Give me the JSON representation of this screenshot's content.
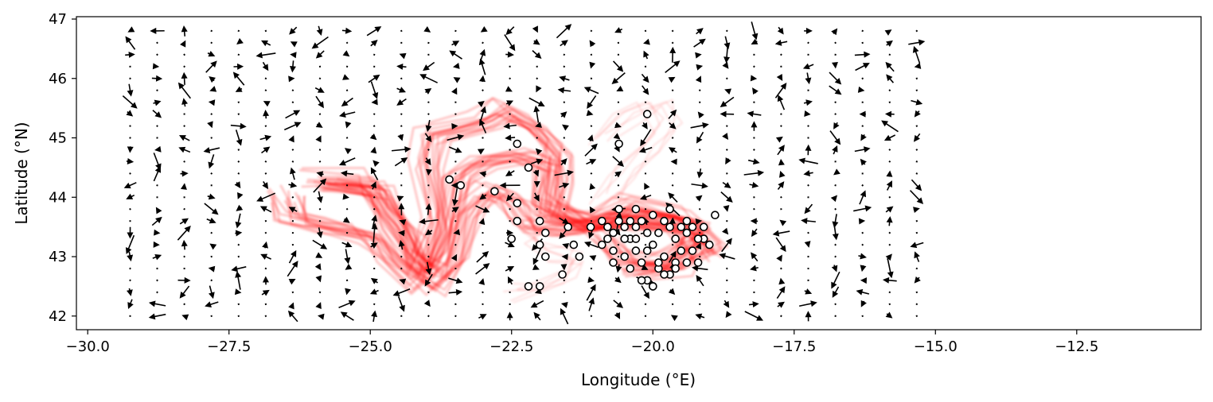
{
  "chart_data": {
    "type": "scatter",
    "title": "",
    "xlabel": "Longitude (°E)",
    "ylabel": "Latitude (°N)",
    "xlim": [
      -30.2,
      -10.3
    ],
    "ylim": [
      41.77,
      47.04
    ],
    "xticks": [
      -30.0,
      -27.5,
      -25.0,
      -22.5,
      -20.0,
      -17.5,
      -15.0,
      -12.5
    ],
    "xtick_labels": [
      "−30.0",
      "−27.5",
      "−25.0",
      "−22.5",
      "−20.0",
      "−17.5",
      "−15.0",
      "−12.5"
    ],
    "yticks": [
      42,
      43,
      44,
      45,
      46,
      47
    ],
    "ytick_labels": [
      "42",
      "43",
      "44",
      "45",
      "46",
      "47"
    ],
    "grid": false,
    "legend": "none",
    "colors": {
      "trajectories": "#ff0000",
      "arrows": "#000000",
      "points_fill": "#ffffff",
      "points_edge": "#000000"
    },
    "series": [
      {
        "kind": "trajectory-density",
        "paths": [
          [
            [
              -26.0,
              44.3
            ],
            [
              -25.0,
              44.3
            ],
            [
              -24.8,
              44.0
            ],
            [
              -24.3,
              43.4
            ],
            [
              -24.1,
              42.8
            ],
            [
              -23.8,
              43.6
            ],
            [
              -24.0,
              44.6
            ],
            [
              -23.9,
              45.1
            ],
            [
              -23.0,
              45.3
            ],
            [
              -22.6,
              45.5
            ],
            [
              -22.1,
              45.2
            ],
            [
              -21.7,
              44.8
            ],
            [
              -21.7,
              44.3
            ],
            [
              -21.8,
              43.8
            ],
            [
              -21.0,
              43.6
            ],
            [
              -20.4,
              43.9
            ],
            [
              -19.4,
              43.7
            ],
            [
              -19.0,
              43.3
            ],
            [
              -19.8,
              42.9
            ],
            [
              -20.6,
              43.0
            ],
            [
              -20.9,
              43.4
            ]
          ],
          [
            [
              -25.7,
              44.2
            ],
            [
              -24.9,
              44.1
            ],
            [
              -24.6,
              43.6
            ],
            [
              -24.3,
              43.0
            ],
            [
              -23.9,
              42.7
            ],
            [
              -23.6,
              43.5
            ],
            [
              -23.5,
              44.3
            ],
            [
              -23.0,
              44.6
            ],
            [
              -22.3,
              44.7
            ],
            [
              -21.8,
              44.5
            ],
            [
              -21.9,
              43.9
            ],
            [
              -21.2,
              43.5
            ],
            [
              -20.6,
              43.7
            ],
            [
              -19.9,
              43.6
            ],
            [
              -19.2,
              43.4
            ],
            [
              -19.6,
              42.8
            ],
            [
              -20.3,
              42.7
            ]
          ],
          [
            [
              -26.5,
              44.1
            ],
            [
              -26.4,
              43.7
            ],
            [
              -25.6,
              43.5
            ],
            [
              -25.0,
              43.4
            ],
            [
              -24.7,
              43.1
            ],
            [
              -24.0,
              42.5
            ],
            [
              -23.5,
              43.0
            ],
            [
              -23.3,
              43.8
            ],
            [
              -22.9,
              44.2
            ],
            [
              -22.5,
              44.0
            ],
            [
              -22.2,
              43.6
            ],
            [
              -21.5,
              43.5
            ],
            [
              -20.6,
              43.6
            ],
            [
              -19.6,
              43.6
            ],
            [
              -19.1,
              43.1
            ]
          ],
          [
            [
              -22.5,
              42.4
            ],
            [
              -22.0,
              42.5
            ],
            [
              -21.5,
              42.7
            ],
            [
              -21.3,
              43.0
            ],
            [
              -21.9,
              43.1
            ],
            [
              -22.3,
              43.4
            ],
            [
              -21.9,
              43.6
            ],
            [
              -21.0,
              43.7
            ],
            [
              -20.2,
              43.5
            ]
          ],
          [
            [
              -21.0,
              45.0
            ],
            [
              -20.5,
              45.4
            ],
            [
              -20.0,
              45.6
            ],
            [
              -19.8,
              45.2
            ],
            [
              -20.1,
              44.8
            ],
            [
              -20.6,
              44.4
            ],
            [
              -20.9,
              44.0
            ]
          ]
        ]
      },
      {
        "kind": "points",
        "points": [
          [
            -20.1,
            45.4
          ],
          [
            -20.6,
            44.9
          ],
          [
            -22.4,
            44.9
          ],
          [
            -22.2,
            44.5
          ],
          [
            -23.6,
            44.3
          ],
          [
            -23.4,
            44.2
          ],
          [
            -22.8,
            44.1
          ],
          [
            -22.4,
            43.9
          ],
          [
            -22.4,
            43.6
          ],
          [
            -22.0,
            43.6
          ],
          [
            -21.9,
            43.4
          ],
          [
            -22.5,
            43.3
          ],
          [
            -22.0,
            43.2
          ],
          [
            -21.9,
            43.0
          ],
          [
            -21.5,
            43.5
          ],
          [
            -21.4,
            43.2
          ],
          [
            -21.3,
            43.0
          ],
          [
            -21.6,
            42.7
          ],
          [
            -22.0,
            42.5
          ],
          [
            -22.2,
            42.5
          ],
          [
            -21.1,
            43.5
          ],
          [
            -20.9,
            43.6
          ],
          [
            -20.8,
            43.3
          ],
          [
            -20.7,
            43.1
          ],
          [
            -20.6,
            43.6
          ],
          [
            -20.5,
            43.5
          ],
          [
            -20.4,
            43.3
          ],
          [
            -20.3,
            43.5
          ],
          [
            -20.2,
            43.6
          ],
          [
            -20.1,
            43.4
          ],
          [
            -20.0,
            43.2
          ],
          [
            -19.9,
            43.4
          ],
          [
            -19.8,
            43.6
          ],
          [
            -19.7,
            43.5
          ],
          [
            -19.6,
            43.3
          ],
          [
            -19.5,
            43.5
          ],
          [
            -19.4,
            43.4
          ],
          [
            -19.3,
            43.5
          ],
          [
            -19.1,
            43.5
          ],
          [
            -18.9,
            43.7
          ],
          [
            -20.9,
            43.2
          ],
          [
            -20.7,
            42.9
          ],
          [
            -20.5,
            43.0
          ],
          [
            -20.4,
            42.8
          ],
          [
            -20.3,
            43.1
          ],
          [
            -20.2,
            42.9
          ],
          [
            -20.1,
            42.6
          ],
          [
            -20.0,
            42.5
          ],
          [
            -19.9,
            42.8
          ],
          [
            -19.8,
            43.0
          ],
          [
            -19.7,
            42.7
          ],
          [
            -19.6,
            42.9
          ],
          [
            -19.5,
            43.1
          ],
          [
            -19.4,
            42.9
          ],
          [
            -19.3,
            43.1
          ],
          [
            -19.2,
            42.9
          ],
          [
            -19.0,
            43.2
          ],
          [
            -19.1,
            43.3
          ],
          [
            -20.6,
            43.8
          ],
          [
            -20.3,
            43.8
          ],
          [
            -20.0,
            43.7
          ],
          [
            -19.7,
            43.8
          ],
          [
            -19.4,
            43.6
          ],
          [
            -20.8,
            43.5
          ],
          [
            -20.5,
            43.3
          ],
          [
            -20.1,
            43.1
          ],
          [
            -19.9,
            42.9
          ],
          [
            -19.8,
            42.7
          ],
          [
            -20.2,
            42.6
          ],
          [
            -20.0,
            42.5
          ],
          [
            -19.6,
            42.8
          ],
          [
            -20.4,
            43.6
          ],
          [
            -20.7,
            43.4
          ],
          [
            -19.2,
            43.3
          ],
          [
            -20.3,
            43.3
          ]
        ]
      },
      {
        "kind": "vector-field",
        "lon_start": -29.25,
        "lon_step": 0.48,
        "lon_count": 30,
        "lat_start": 42.0,
        "lat_step": 0.2,
        "lat_count": 25
      }
    ]
  }
}
